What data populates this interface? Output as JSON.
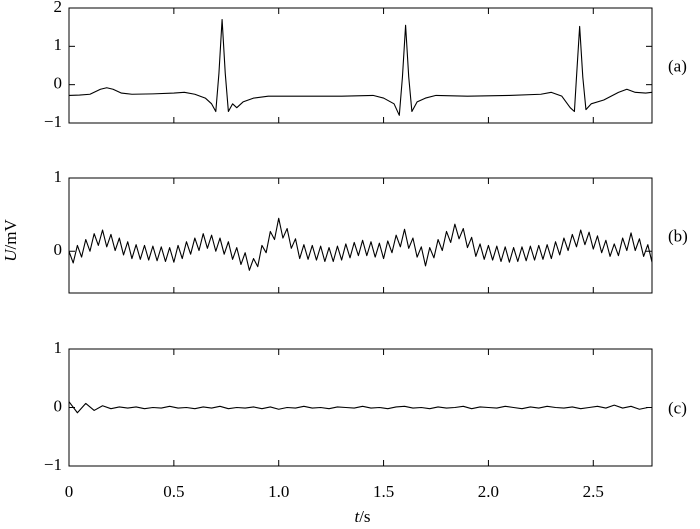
{
  "chart_data": [
    {
      "type": "line",
      "panel_label": "(a)",
      "color": "#000000",
      "xlim": [
        0,
        2.78
      ],
      "ylim": [
        -1,
        2
      ],
      "yticks": [
        2,
        1,
        0,
        {
          "value": -1,
          "label": "−1"
        }
      ],
      "x": [
        0,
        0.05,
        0.1,
        0.15,
        0.18,
        0.21,
        0.25,
        0.3,
        0.4,
        0.5,
        0.55,
        0.6,
        0.65,
        0.68,
        0.7,
        0.715,
        0.73,
        0.745,
        0.76,
        0.78,
        0.8,
        0.83,
        0.88,
        0.95,
        1.1,
        1.3,
        1.45,
        1.5,
        1.55,
        1.575,
        1.59,
        1.605,
        1.62,
        1.635,
        1.66,
        1.7,
        1.75,
        1.9,
        2.1,
        2.25,
        2.3,
        2.35,
        2.39,
        2.41,
        2.42,
        2.435,
        2.45,
        2.465,
        2.49,
        2.55,
        2.62,
        2.66,
        2.7,
        2.75,
        2.78
      ],
      "values": [
        -0.28,
        -0.27,
        -0.25,
        -0.12,
        -0.08,
        -0.12,
        -0.22,
        -0.25,
        -0.24,
        -0.22,
        -0.2,
        -0.25,
        -0.35,
        -0.5,
        -0.7,
        0.3,
        1.7,
        0.3,
        -0.7,
        -0.5,
        -0.6,
        -0.45,
        -0.35,
        -0.3,
        -0.3,
        -0.3,
        -0.28,
        -0.35,
        -0.5,
        -0.8,
        0.2,
        1.55,
        0.2,
        -0.7,
        -0.45,
        -0.35,
        -0.28,
        -0.3,
        -0.28,
        -0.25,
        -0.2,
        -0.3,
        -0.6,
        -0.7,
        0.2,
        1.52,
        0.2,
        -0.65,
        -0.5,
        -0.4,
        -0.2,
        -0.12,
        -0.2,
        -0.22,
        -0.2
      ]
    },
    {
      "type": "line",
      "panel_label": "(b)",
      "color": "#000000",
      "ylabel": "U/mV",
      "xlim": [
        0,
        2.78
      ],
      "ylim": [
        -0.57,
        1
      ],
      "yticks": [
        1,
        0
      ],
      "x": [
        0,
        0.02,
        0.04,
        0.06,
        0.08,
        0.1,
        0.12,
        0.14,
        0.16,
        0.18,
        0.2,
        0.22,
        0.24,
        0.26,
        0.28,
        0.3,
        0.32,
        0.34,
        0.36,
        0.38,
        0.4,
        0.42,
        0.44,
        0.46,
        0.48,
        0.5,
        0.52,
        0.54,
        0.56,
        0.58,
        0.6,
        0.62,
        0.64,
        0.66,
        0.68,
        0.7,
        0.72,
        0.74,
        0.76,
        0.78,
        0.8,
        0.82,
        0.84,
        0.86,
        0.88,
        0.9,
        0.92,
        0.94,
        0.96,
        0.98,
        1,
        1.02,
        1.04,
        1.06,
        1.08,
        1.1,
        1.12,
        1.14,
        1.16,
        1.18,
        1.2,
        1.22,
        1.24,
        1.26,
        1.28,
        1.3,
        1.32,
        1.34,
        1.36,
        1.38,
        1.4,
        1.42,
        1.44,
        1.46,
        1.48,
        1.5,
        1.52,
        1.54,
        1.56,
        1.58,
        1.6,
        1.62,
        1.64,
        1.66,
        1.68,
        1.7,
        1.72,
        1.74,
        1.76,
        1.78,
        1.8,
        1.82,
        1.84,
        1.86,
        1.88,
        1.9,
        1.92,
        1.94,
        1.96,
        1.98,
        2,
        2.02,
        2.04,
        2.06,
        2.08,
        2.1,
        2.12,
        2.14,
        2.16,
        2.18,
        2.2,
        2.22,
        2.24,
        2.26,
        2.28,
        2.3,
        2.32,
        2.34,
        2.36,
        2.38,
        2.4,
        2.42,
        2.44,
        2.46,
        2.48,
        2.5,
        2.52,
        2.54,
        2.56,
        2.58,
        2.6,
        2.62,
        2.64,
        2.66,
        2.68,
        2.7,
        2.72,
        2.74,
        2.76,
        2.78
      ],
      "values": [
        0,
        -0.16,
        0.08,
        -0.08,
        0.16,
        0,
        0.24,
        0.08,
        0.29,
        0.06,
        0.23,
        0.01,
        0.18,
        -0.05,
        0.13,
        -0.1,
        0.09,
        -0.11,
        0.08,
        -0.12,
        0.07,
        -0.13,
        0.06,
        -0.14,
        0.05,
        -0.15,
        0.08,
        -0.1,
        0.13,
        -0.04,
        0.18,
        0.01,
        0.24,
        0.04,
        0.22,
        0,
        0.18,
        -0.04,
        0.13,
        -0.11,
        0.05,
        -0.18,
        -0.02,
        -0.26,
        -0.1,
        -0.21,
        0.08,
        -0.02,
        0.27,
        0.16,
        0.45,
        0.18,
        0.31,
        0.04,
        0.17,
        -0.1,
        0.09,
        -0.11,
        0.08,
        -0.12,
        0.07,
        -0.14,
        0.05,
        -0.14,
        0.07,
        -0.12,
        0.1,
        -0.09,
        0.12,
        -0.06,
        0.15,
        -0.06,
        0.13,
        -0.08,
        0.11,
        -0.1,
        0.14,
        -0.02,
        0.22,
        0.06,
        0.3,
        0.04,
        0.18,
        -0.08,
        0.06,
        -0.2,
        0.05,
        -0.09,
        0.16,
        0.01,
        0.27,
        0.12,
        0.37,
        0.17,
        0.31,
        0.05,
        0.19,
        -0.07,
        0.1,
        -0.11,
        0.08,
        -0.12,
        0.07,
        -0.14,
        0.06,
        -0.15,
        0.05,
        -0.14,
        0.06,
        -0.13,
        0.07,
        -0.12,
        0.08,
        -0.11,
        0.09,
        -0.1,
        0.13,
        -0.05,
        0.18,
        0.01,
        0.23,
        0.06,
        0.29,
        0.09,
        0.26,
        0.03,
        0.21,
        -0.02,
        0.15,
        -0.07,
        0.1,
        -0.06,
        0.18,
        0.01,
        0.25,
        0.01,
        0.17,
        -0.07,
        0.09,
        -0.15
      ]
    },
    {
      "type": "line",
      "panel_label": "(c)",
      "color": "#000000",
      "xlabel": "t/s",
      "xlim": [
        0,
        2.78
      ],
      "ylim": [
        -1,
        1
      ],
      "yticks": [
        1,
        0,
        {
          "value": -1,
          "label": "−1"
        }
      ],
      "xticks": [
        0,
        0.5,
        {
          "value": 1,
          "label": "1.0"
        },
        1.5,
        {
          "value": 2,
          "label": "2.0"
        },
        2.5
      ],
      "x": [
        0,
        0.04,
        0.08,
        0.12,
        0.16,
        0.2,
        0.24,
        0.28,
        0.32,
        0.36,
        0.4,
        0.44,
        0.48,
        0.52,
        0.56,
        0.6,
        0.64,
        0.68,
        0.72,
        0.76,
        0.8,
        0.84,
        0.88,
        0.92,
        0.96,
        1,
        1.04,
        1.08,
        1.12,
        1.16,
        1.2,
        1.24,
        1.28,
        1.32,
        1.36,
        1.4,
        1.44,
        1.48,
        1.52,
        1.56,
        1.6,
        1.64,
        1.68,
        1.72,
        1.76,
        1.8,
        1.84,
        1.88,
        1.92,
        1.96,
        2,
        2.04,
        2.08,
        2.12,
        2.16,
        2.2,
        2.24,
        2.28,
        2.32,
        2.36,
        2.4,
        2.44,
        2.48,
        2.52,
        2.56,
        2.6,
        2.64,
        2.68,
        2.72,
        2.76
      ],
      "values": [
        0.1,
        -0.09,
        0.07,
        -0.05,
        0.03,
        -0.02,
        0.01,
        -0.01,
        0.01,
        -0.02,
        0,
        -0.01,
        0.02,
        -0.01,
        0,
        -0.02,
        0.01,
        -0.01,
        0.02,
        -0.02,
        0,
        -0.01,
        0.01,
        -0.02,
        0.01,
        -0.03,
        0,
        -0.01,
        0.02,
        -0.01,
        0,
        -0.02,
        0.01,
        0,
        -0.01,
        0.02,
        -0.01,
        0,
        -0.02,
        0.01,
        0.02,
        -0.01,
        0,
        -0.02,
        0.01,
        -0.01,
        0,
        0.02,
        -0.02,
        0.01,
        0,
        -0.01,
        0.02,
        0,
        -0.02,
        0.01,
        -0.01,
        0.02,
        0,
        -0.01,
        0.01,
        -0.02,
        0,
        0.02,
        -0.01,
        0.04,
        -0.01,
        0.02,
        -0.03,
        0
      ]
    }
  ]
}
